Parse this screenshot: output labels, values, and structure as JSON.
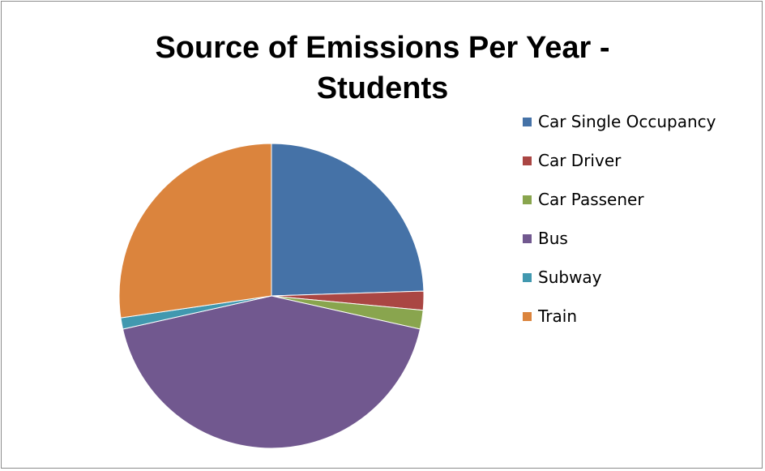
{
  "chart_data": {
    "type": "pie",
    "title": "Source of Emissions Per Year -\nStudents",
    "categories": [
      "Car Single Occupancy",
      "Car Driver",
      "Car Passener",
      "Bus",
      "Subway",
      "Train"
    ],
    "values": [
      24.5,
      2.0,
      2.0,
      43.0,
      1.2,
      27.3
    ],
    "unit": "%",
    "colors": [
      "#4572a7",
      "#aa4643",
      "#89a54e",
      "#71588f",
      "#4198af",
      "#db843d"
    ],
    "legend_position": "right",
    "start_angle": "12 o'clock",
    "direction": "clockwise"
  }
}
